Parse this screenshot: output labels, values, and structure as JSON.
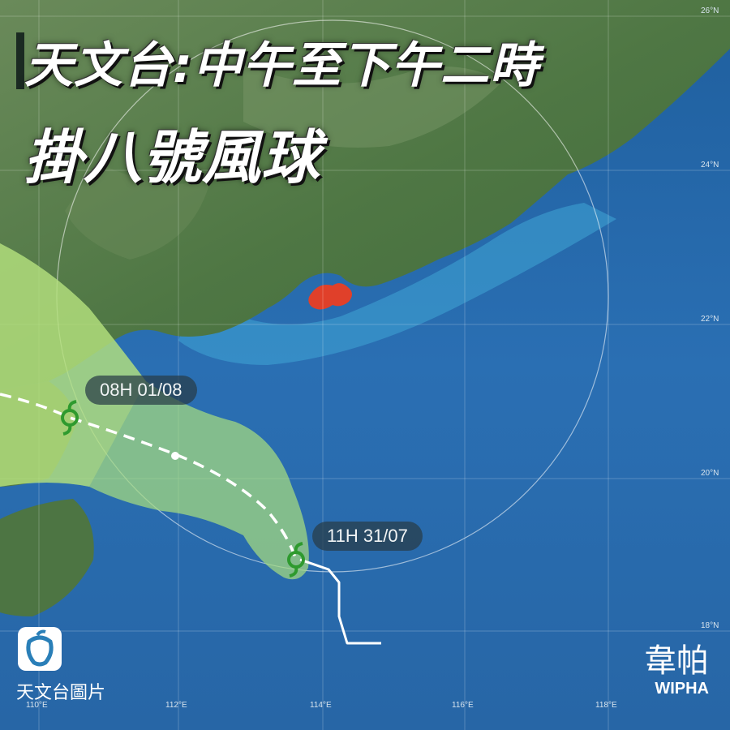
{
  "headline": {
    "line1": "天文台:中午至下午二時",
    "line2": "掛八號風球"
  },
  "forecast_labels": [
    {
      "text": "08H 01/08"
    },
    {
      "text": "11H 31/07"
    }
  ],
  "latitude_labels": [
    "26°N",
    "24°N",
    "22°N",
    "20°N",
    "18°N"
  ],
  "longitude_labels": [
    "110°E",
    "112°E",
    "114°E",
    "116°E",
    "118°E"
  ],
  "storm": {
    "name_zh": "韋帕",
    "name_en": "WIPHA",
    "icon": "typhoon-symbol-icon"
  },
  "source": {
    "caption": "天文台圖片",
    "icon": "hko-logo-icon"
  },
  "colors": {
    "sea": "#2f73b5",
    "land": "#4f7a47",
    "cone_fill": "#9cd37a",
    "hong_kong": "#e0402a",
    "typhoon_symbol": "#2e9a2e",
    "track": "#ffffff"
  }
}
